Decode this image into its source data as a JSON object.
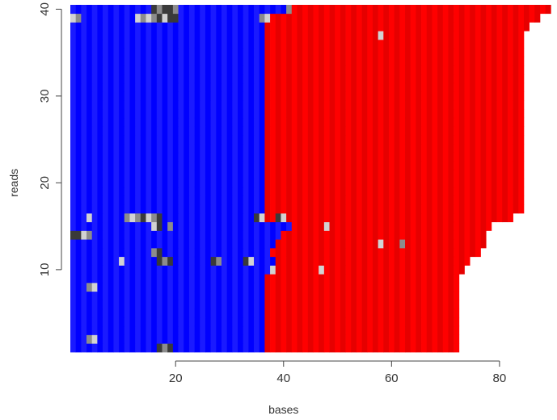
{
  "chart_data": {
    "type": "heatmap",
    "title": "",
    "xlabel": "bases",
    "ylabel": "reads",
    "xlim": [
      0.5,
      90.5
    ],
    "ylim": [
      0.5,
      40.5
    ],
    "x_ticks": [
      20,
      40,
      60,
      80
    ],
    "y_ticks": [
      10,
      20,
      30,
      40
    ],
    "grid": false,
    "legend": "none",
    "colors": {
      "blue_stripes": [
        "#0000ff",
        "#1a1aff"
      ],
      "red_stripes": [
        "#ff0000",
        "#e60000"
      ],
      "dark_gray": "#3a3a3a",
      "mid_gray": "#8c8c8c",
      "light_gray": "#d2d2d2",
      "axis": "#444444"
    },
    "rows": [
      {
        "read": 1,
        "boundary": 36,
        "length": 72
      },
      {
        "read": 2,
        "boundary": 36,
        "length": 72
      },
      {
        "read": 3,
        "boundary": 36,
        "length": 72
      },
      {
        "read": 4,
        "boundary": 36,
        "length": 72
      },
      {
        "read": 5,
        "boundary": 36,
        "length": 72
      },
      {
        "read": 6,
        "boundary": 36,
        "length": 72
      },
      {
        "read": 7,
        "boundary": 36,
        "length": 72
      },
      {
        "read": 8,
        "boundary": 36,
        "length": 72
      },
      {
        "read": 9,
        "boundary": 36,
        "length": 72
      },
      {
        "read": 10,
        "boundary": 37,
        "length": 73
      },
      {
        "read": 11,
        "boundary": 38,
        "length": 74
      },
      {
        "read": 12,
        "boundary": 37,
        "length": 76
      },
      {
        "read": 13,
        "boundary": 38,
        "length": 77
      },
      {
        "read": 14,
        "boundary": 39,
        "length": 77
      },
      {
        "read": 15,
        "boundary": 41,
        "length": 78
      },
      {
        "read": 16,
        "boundary": 36,
        "length": 82
      },
      {
        "read": 17,
        "boundary": 36,
        "length": 84
      },
      {
        "read": 18,
        "boundary": 36,
        "length": 84
      },
      {
        "read": 19,
        "boundary": 36,
        "length": 84
      },
      {
        "read": 20,
        "boundary": 36,
        "length": 84
      },
      {
        "read": 21,
        "boundary": 36,
        "length": 84
      },
      {
        "read": 22,
        "boundary": 36,
        "length": 84
      },
      {
        "read": 23,
        "boundary": 36,
        "length": 84
      },
      {
        "read": 24,
        "boundary": 36,
        "length": 84
      },
      {
        "read": 25,
        "boundary": 36,
        "length": 84
      },
      {
        "read": 26,
        "boundary": 36,
        "length": 84
      },
      {
        "read": 27,
        "boundary": 36,
        "length": 84
      },
      {
        "read": 28,
        "boundary": 36,
        "length": 84
      },
      {
        "read": 29,
        "boundary": 36,
        "length": 84
      },
      {
        "read": 30,
        "boundary": 36,
        "length": 84
      },
      {
        "read": 31,
        "boundary": 36,
        "length": 84
      },
      {
        "read": 32,
        "boundary": 36,
        "length": 84
      },
      {
        "read": 33,
        "boundary": 36,
        "length": 84
      },
      {
        "read": 34,
        "boundary": 36,
        "length": 84
      },
      {
        "read": 35,
        "boundary": 36,
        "length": 84
      },
      {
        "read": 36,
        "boundary": 36,
        "length": 84
      },
      {
        "read": 37,
        "boundary": 36,
        "length": 84
      },
      {
        "read": 38,
        "boundary": 36,
        "length": 85
      },
      {
        "read": 39,
        "boundary": 36,
        "length": 87
      },
      {
        "read": 40,
        "boundary": 41,
        "length": 89
      }
    ],
    "special_cells": [
      {
        "read": 1,
        "base": 17,
        "color": "dark"
      },
      {
        "read": 1,
        "base": 18,
        "color": "mid"
      },
      {
        "read": 1,
        "base": 19,
        "color": "dark"
      },
      {
        "read": 2,
        "base": 4,
        "color": "mid"
      },
      {
        "read": 2,
        "base": 5,
        "color": "light"
      },
      {
        "read": 8,
        "base": 4,
        "color": "mid"
      },
      {
        "read": 8,
        "base": 5,
        "color": "light"
      },
      {
        "read": 10,
        "base": 38,
        "color": "light"
      },
      {
        "read": 10,
        "base": 47,
        "color": "light"
      },
      {
        "read": 11,
        "base": 10,
        "color": "light"
      },
      {
        "read": 11,
        "base": 17,
        "color": "dark"
      },
      {
        "read": 11,
        "base": 18,
        "color": "mid"
      },
      {
        "read": 11,
        "base": 19,
        "color": "dark"
      },
      {
        "read": 11,
        "base": 27,
        "color": "dark"
      },
      {
        "read": 11,
        "base": 28,
        "color": "mid"
      },
      {
        "read": 11,
        "base": 33,
        "color": "dark"
      },
      {
        "read": 11,
        "base": 34,
        "color": "light"
      },
      {
        "read": 12,
        "base": 16,
        "color": "mid"
      },
      {
        "read": 12,
        "base": 17,
        "color": "dark"
      },
      {
        "read": 13,
        "base": 58,
        "color": "light"
      },
      {
        "read": 13,
        "base": 62,
        "color": "mid"
      },
      {
        "read": 14,
        "base": 1,
        "color": "dark"
      },
      {
        "read": 14,
        "base": 2,
        "color": "dark"
      },
      {
        "read": 14,
        "base": 3,
        "color": "light"
      },
      {
        "read": 14,
        "base": 4,
        "color": "mid"
      },
      {
        "read": 15,
        "base": 16,
        "color": "light"
      },
      {
        "read": 15,
        "base": 17,
        "color": "dark"
      },
      {
        "read": 15,
        "base": 19,
        "color": "mid"
      },
      {
        "read": 15,
        "base": 48,
        "color": "light"
      },
      {
        "read": 16,
        "base": 4,
        "color": "light"
      },
      {
        "read": 16,
        "base": 11,
        "color": "mid"
      },
      {
        "read": 16,
        "base": 12,
        "color": "light"
      },
      {
        "read": 16,
        "base": 13,
        "color": "mid"
      },
      {
        "read": 16,
        "base": 14,
        "color": "dark"
      },
      {
        "read": 16,
        "base": 15,
        "color": "light"
      },
      {
        "read": 16,
        "base": 16,
        "color": "mid"
      },
      {
        "read": 16,
        "base": 17,
        "color": "dark"
      },
      {
        "read": 16,
        "base": 35,
        "color": "dark"
      },
      {
        "read": 16,
        "base": 36,
        "color": "light"
      },
      {
        "read": 16,
        "base": 39,
        "color": "dark"
      },
      {
        "read": 16,
        "base": 40,
        "color": "light"
      },
      {
        "read": 37,
        "base": 58,
        "color": "light"
      },
      {
        "read": 39,
        "base": 1,
        "color": "light"
      },
      {
        "read": 39,
        "base": 2,
        "color": "mid"
      },
      {
        "read": 39,
        "base": 13,
        "color": "light"
      },
      {
        "read": 39,
        "base": 14,
        "color": "mid"
      },
      {
        "read": 39,
        "base": 15,
        "color": "light"
      },
      {
        "read": 39,
        "base": 16,
        "color": "mid"
      },
      {
        "read": 39,
        "base": 17,
        "color": "dark"
      },
      {
        "read": 39,
        "base": 18,
        "color": "light"
      },
      {
        "read": 39,
        "base": 19,
        "color": "dark"
      },
      {
        "read": 39,
        "base": 20,
        "color": "dark"
      },
      {
        "read": 39,
        "base": 36,
        "color": "mid"
      },
      {
        "read": 39,
        "base": 37,
        "color": "light"
      },
      {
        "read": 40,
        "base": 16,
        "color": "dark"
      },
      {
        "read": 40,
        "base": 17,
        "color": "mid"
      },
      {
        "read": 40,
        "base": 18,
        "color": "dark"
      },
      {
        "read": 40,
        "base": 19,
        "color": "dark"
      },
      {
        "read": 40,
        "base": 20,
        "color": "mid"
      },
      {
        "read": 40,
        "base": 41,
        "color": "mid"
      }
    ]
  }
}
